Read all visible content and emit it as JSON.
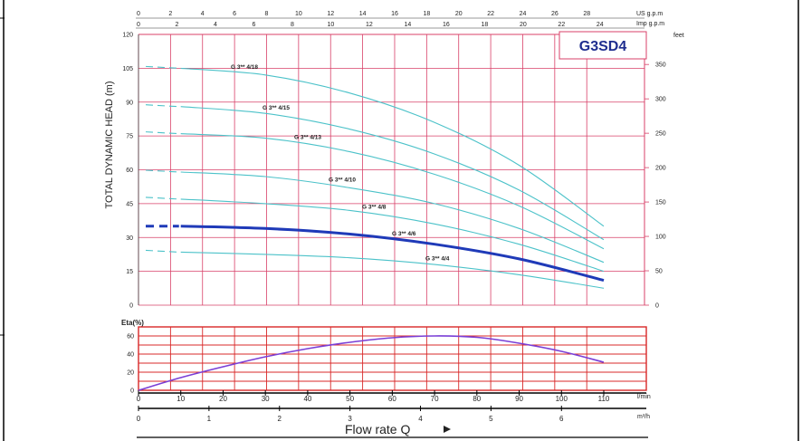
{
  "chart_data": [
    {
      "type": "line",
      "title": "G3SD4",
      "ylabel": "TOTAL DYNAMIC HEAD (m)",
      "ylim": [
        0,
        120
      ],
      "xlim": [
        0,
        110
      ],
      "y_ticks": [
        0,
        15,
        30,
        45,
        60,
        75,
        90,
        105,
        120
      ],
      "right_unit": "feet",
      "right_ticks": [
        0,
        50,
        100,
        150,
        200,
        250,
        300,
        350
      ],
      "top_axis_us": {
        "unit": "US g.p.m",
        "ticks": [
          0,
          2,
          4,
          6,
          8,
          10,
          12,
          14,
          16,
          18,
          20,
          22,
          24,
          26,
          28
        ]
      },
      "top_axis_imp": {
        "unit": "Imp g.p.m",
        "ticks": [
          0,
          2,
          4,
          6,
          8,
          10,
          12,
          14,
          16,
          18,
          20,
          22,
          24
        ]
      },
      "grid": true,
      "series": [
        {
          "name": "G 3** 4/18",
          "x": [
            10,
            30,
            50,
            70,
            90,
            110
          ],
          "values": [
            105,
            102,
            94,
            81,
            62,
            35
          ]
        },
        {
          "name": "G 3** 4/15",
          "x": [
            10,
            30,
            50,
            70,
            90,
            110
          ],
          "values": [
            88,
            85,
            78,
            67,
            51,
            29
          ]
        },
        {
          "name": "G 3** 4/13",
          "x": [
            10,
            30,
            50,
            70,
            90,
            110
          ],
          "values": [
            76,
            74,
            68,
            58,
            44,
            25
          ]
        },
        {
          "name": "G 3** 4/10",
          "x": [
            10,
            30,
            50,
            70,
            90,
            110
          ],
          "values": [
            59,
            57,
            52,
            45,
            34,
            19
          ]
        },
        {
          "name": "G 3** 4/8",
          "x": [
            10,
            30,
            50,
            70,
            90,
            110
          ],
          "values": [
            47,
            45,
            42,
            36,
            27,
            15
          ]
        },
        {
          "name": "G 3** 4/6",
          "x": [
            10,
            30,
            50,
            70,
            90,
            110
          ],
          "values": [
            35,
            34,
            31.5,
            27,
            20.5,
            11
          ],
          "highlight": true
        },
        {
          "name": "G 3** 4/4",
          "x": [
            10,
            30,
            50,
            70,
            90,
            110
          ],
          "values": [
            23.5,
            22.5,
            21,
            18,
            13.5,
            7.5
          ]
        }
      ],
      "colors": {
        "curves": "#4cc2c9",
        "highlight": "#1f3ab8",
        "grid": "#d84068",
        "title_text": "#1f2e8f"
      }
    },
    {
      "type": "line",
      "ylabel": "Eta(%)",
      "ylim": [
        0,
        70
      ],
      "xlim": [
        0,
        110
      ],
      "y_ticks": [
        0,
        20,
        40,
        60
      ],
      "x_ticks": [
        0,
        10,
        20,
        30,
        40,
        50,
        60,
        70,
        80,
        90,
        100,
        110
      ],
      "x_unit": "l/min",
      "x2_ticks": [
        0,
        1,
        2,
        3,
        4,
        5,
        6
      ],
      "x2_unit": "m³/h",
      "xlabel": "Flow rate Q",
      "grid": true,
      "series": [
        {
          "x": [
            0,
            10,
            20,
            30,
            40,
            50,
            60,
            70,
            80,
            90,
            100,
            110
          ],
          "values": [
            0,
            14,
            26,
            37,
            46,
            53,
            58,
            60,
            58.5,
            52,
            43,
            31
          ]
        }
      ],
      "colors": {
        "curve": "#7a3fd6",
        "grid": "#d82828"
      }
    }
  ]
}
